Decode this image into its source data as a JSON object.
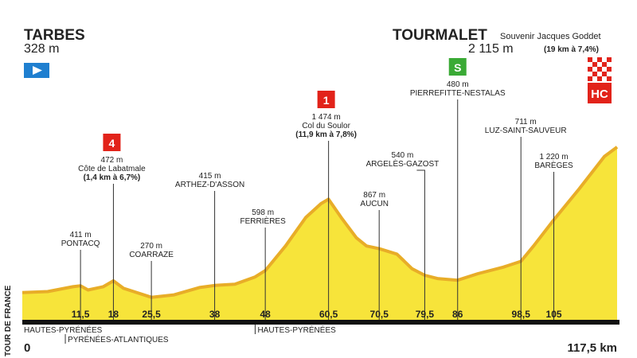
{
  "chart_data": {
    "type": "area",
    "side_label": "TOUR DE FRANCE",
    "start": {
      "name": "TARBES",
      "altitude": "328 m"
    },
    "finish": {
      "name": "TOURMALET",
      "subtitle": "Souvenir Jacques Goddet",
      "altitude": "2 115 m",
      "detail": "(19 km à 7,4%)",
      "badge": "HC"
    },
    "x": [
      0,
      5,
      10,
      11.5,
      13,
      16,
      18,
      20,
      25.5,
      30,
      35,
      38,
      42,
      46,
      48,
      52,
      56,
      59,
      60.5,
      63,
      66,
      68,
      70.5,
      74,
      77,
      79.5,
      82,
      86,
      90,
      95,
      98.5,
      101,
      105,
      110,
      115,
      117.5
    ],
    "values": [
      328,
      340,
      400,
      411,
      360,
      400,
      472,
      380,
      270,
      300,
      390,
      415,
      430,
      520,
      598,
      900,
      1250,
      1420,
      1474,
      1250,
      1000,
      900,
      867,
      800,
      620,
      540,
      500,
      480,
      560,
      640,
      711,
      900,
      1220,
      1600,
      2000,
      2115
    ],
    "color": "#f7e43a",
    "edge_color": "#e8ad28",
    "xlim": [
      0,
      117.5
    ],
    "ylim": [
      130,
      2250
    ],
    "xticks": [
      0,
      {
        "value": 11.5,
        "label": "11,5"
      },
      18,
      {
        "value": 25.5,
        "label": "25,5"
      },
      38,
      48,
      {
        "value": 60.5,
        "label": "60,5"
      },
      {
        "value": 70.5,
        "label": "70,5"
      },
      {
        "value": 79.5,
        "label": "79,5"
      },
      86,
      {
        "value": 98.5,
        "label": "98,5"
      },
      105,
      {
        "value": 117.5,
        "label": "117,5 km"
      }
    ],
    "annotations": [
      {
        "x": 11.5,
        "altitude": "411 m",
        "name": "PONTACQ"
      },
      {
        "x": 18,
        "badge": "4",
        "altitude": "472 m",
        "name": "Côte de Labatmale",
        "detail": "(1,4 km à 6,7%)"
      },
      {
        "x": 25.5,
        "altitude": "270 m",
        "name": "COARRAZE"
      },
      {
        "x": 38,
        "altitude": "415 m",
        "name": "ARTHEZ-D'ASSON"
      },
      {
        "x": 48,
        "altitude": "598 m",
        "name": "FERRIÈRES"
      },
      {
        "x": 60.5,
        "badge": "1",
        "altitude": "1 474 m",
        "name": "Col du Soulor",
        "detail": "(11,9 km à 7,8%)"
      },
      {
        "x": 70.5,
        "altitude": "867 m",
        "name": "AUCUN"
      },
      {
        "x": 79.5,
        "altitude": "540 m",
        "name": "ARGELÈS-GAZOST"
      },
      {
        "x": 86,
        "badge": "S",
        "altitude": "480 m",
        "name": "PIERREFITTE-NESTALAS"
      },
      {
        "x": 98.5,
        "altitude": "711 m",
        "name": "LUZ-SAINT-SAUVEUR"
      },
      {
        "x": 105,
        "altitude": "1 220 m",
        "name": "BARÈGES"
      }
    ],
    "regions": [
      {
        "x": 0,
        "name": "HAUTES-PYRÉNÉES"
      },
      {
        "x": 8.5,
        "name": "PYRÉNÉES-ATLANTIQUES"
      },
      {
        "x": 46,
        "name": "HAUTES-PYRÉNÉES"
      }
    ]
  }
}
